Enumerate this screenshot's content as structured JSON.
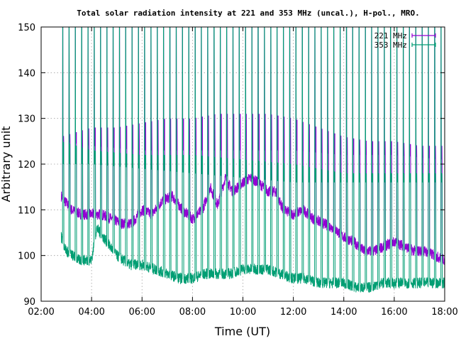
{
  "chart_data": {
    "type": "line",
    "title": "Total solar radiation intensity at 221 and 353 MHz (uncal.), H-pol., MRO.",
    "xlabel": "Time (UT)",
    "ylabel": "Arbitrary unit",
    "x_ticks": [
      "02:00",
      "04:00",
      "06:00",
      "08:00",
      "10:00",
      "12:00",
      "14:00",
      "16:00",
      "18:00"
    ],
    "y_ticks": [
      90,
      100,
      110,
      120,
      130,
      140,
      150
    ],
    "xlim_hours": [
      2,
      18
    ],
    "ylim": [
      90,
      150
    ],
    "grid": true,
    "legend_position": "top-right",
    "series": [
      {
        "name": "221 MHz",
        "color": "#9400d3",
        "start_hour": 2.8,
        "end_hour": 18.0,
        "baseline": [
          [
            2.8,
            113
          ],
          [
            3.2,
            110
          ],
          [
            3.6,
            109
          ],
          [
            4.0,
            109
          ],
          [
            4.4,
            109
          ],
          [
            4.8,
            108
          ],
          [
            5.2,
            107
          ],
          [
            5.6,
            107
          ],
          [
            6.0,
            110
          ],
          [
            6.4,
            109
          ],
          [
            6.8,
            112
          ],
          [
            7.2,
            113
          ],
          [
            7.6,
            110
          ],
          [
            8.0,
            108
          ],
          [
            8.4,
            110
          ],
          [
            8.7,
            115
          ],
          [
            9.0,
            111
          ],
          [
            9.3,
            117
          ],
          [
            9.6,
            114
          ],
          [
            10.0,
            116
          ],
          [
            10.3,
            117
          ],
          [
            10.6,
            116
          ],
          [
            11.0,
            114
          ],
          [
            11.3,
            114
          ],
          [
            11.6,
            110
          ],
          [
            12.0,
            109
          ],
          [
            12.4,
            110
          ],
          [
            12.8,
            108
          ],
          [
            13.2,
            107
          ],
          [
            13.6,
            106
          ],
          [
            14.0,
            104
          ],
          [
            14.4,
            103
          ],
          [
            14.8,
            101
          ],
          [
            15.2,
            101
          ],
          [
            15.6,
            102
          ],
          [
            16.0,
            103
          ],
          [
            16.4,
            102
          ],
          [
            16.8,
            101
          ],
          [
            17.2,
            101
          ],
          [
            17.6,
            100
          ],
          [
            18.0,
            99
          ]
        ],
        "cal_top": [
          [
            2.8,
            126
          ],
          [
            4.0,
            128
          ],
          [
            5.0,
            128
          ],
          [
            6.0,
            129
          ],
          [
            7.0,
            130
          ],
          [
            8.0,
            130
          ],
          [
            9.0,
            131
          ],
          [
            10.0,
            131
          ],
          [
            11.0,
            131
          ],
          [
            12.0,
            130
          ],
          [
            13.0,
            128
          ],
          [
            14.0,
            126
          ],
          [
            15.0,
            125
          ],
          [
            16.0,
            125
          ],
          [
            17.0,
            124
          ],
          [
            17.9,
            124
          ]
        ],
        "cal_bottom": [
          [
            2.8,
            125
          ],
          [
            4.0,
            124
          ],
          [
            6.0,
            123
          ],
          [
            8.0,
            123
          ],
          [
            10.0,
            123
          ],
          [
            12.0,
            123
          ],
          [
            14.0,
            122
          ],
          [
            16.0,
            122
          ],
          [
            17.9,
            121
          ]
        ],
        "cal_pulse_period_min": 15,
        "spike_top": 150
      },
      {
        "name": "353 MHz",
        "color": "#009e73",
        "start_hour": 2.8,
        "end_hour": 18.0,
        "baseline": [
          [
            2.8,
            104
          ],
          [
            3.0,
            101
          ],
          [
            3.5,
            99
          ],
          [
            4.0,
            99
          ],
          [
            4.2,
            106
          ],
          [
            4.6,
            103
          ],
          [
            5.0,
            100
          ],
          [
            5.5,
            98
          ],
          [
            6.0,
            98
          ],
          [
            6.5,
            97
          ],
          [
            7.0,
            96
          ],
          [
            7.5,
            95
          ],
          [
            8.0,
            95
          ],
          [
            8.5,
            96
          ],
          [
            9.0,
            96
          ],
          [
            9.5,
            96
          ],
          [
            10.0,
            97
          ],
          [
            10.5,
            97
          ],
          [
            11.0,
            97
          ],
          [
            11.5,
            96
          ],
          [
            12.0,
            95
          ],
          [
            12.5,
            95
          ],
          [
            13.0,
            94
          ],
          [
            13.5,
            94
          ],
          [
            14.0,
            94
          ],
          [
            14.5,
            93
          ],
          [
            15.0,
            93
          ],
          [
            15.5,
            94
          ],
          [
            16.0,
            94
          ],
          [
            16.5,
            94
          ],
          [
            17.0,
            94
          ],
          [
            17.5,
            94
          ],
          [
            18.0,
            94
          ]
        ],
        "cal_top": [
          [
            2.8,
            125
          ],
          [
            4.0,
            123
          ],
          [
            6.0,
            122
          ],
          [
            8.0,
            122
          ],
          [
            10.0,
            121
          ],
          [
            12.0,
            120
          ],
          [
            14.0,
            118
          ],
          [
            16.0,
            118
          ],
          [
            17.9,
            118
          ]
        ],
        "cal_bottom": [
          [
            2.8,
            120
          ],
          [
            4.0,
            120
          ],
          [
            6.0,
            119
          ],
          [
            8.0,
            118
          ],
          [
            10.0,
            117
          ],
          [
            12.0,
            116
          ],
          [
            14.0,
            116
          ],
          [
            16.0,
            116
          ],
          [
            17.9,
            116
          ]
        ],
        "cal_pulse_period_min": 15,
        "spike_top": 150
      }
    ]
  }
}
